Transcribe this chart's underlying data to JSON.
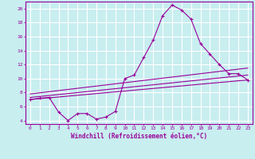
{
  "xlabel": "Windchill (Refroidissement éolien,°C)",
  "background_color": "#c8eef0",
  "grid_color": "#ffffff",
  "line_color": "#990099",
  "xlim": [
    -0.5,
    23.5
  ],
  "ylim": [
    3.5,
    21.0
  ],
  "yticks": [
    4,
    6,
    8,
    10,
    12,
    14,
    16,
    18,
    20
  ],
  "xticks": [
    0,
    1,
    2,
    3,
    4,
    5,
    6,
    7,
    8,
    9,
    10,
    11,
    12,
    13,
    14,
    15,
    16,
    17,
    18,
    19,
    20,
    21,
    22,
    23
  ],
  "series": [
    {
      "x": [
        0,
        1,
        2,
        3,
        4,
        5,
        6,
        7,
        8,
        9,
        10,
        11,
        12,
        13,
        14,
        15,
        16,
        17,
        18,
        19,
        20,
        21,
        22,
        23
      ],
      "y": [
        7.0,
        7.2,
        7.3,
        5.2,
        4.0,
        5.0,
        5.0,
        4.2,
        4.5,
        5.3,
        10.0,
        10.5,
        13.0,
        15.5,
        19.0,
        20.5,
        19.8,
        18.5,
        15.0,
        13.5,
        12.0,
        10.7,
        10.7,
        9.8
      ],
      "marker": true
    },
    {
      "x": [
        0,
        23
      ],
      "y": [
        7.0,
        9.8
      ],
      "marker": false
    },
    {
      "x": [
        0,
        23
      ],
      "y": [
        7.3,
        10.5
      ],
      "marker": false
    },
    {
      "x": [
        0,
        23
      ],
      "y": [
        7.8,
        11.5
      ],
      "marker": false
    }
  ],
  "xlabel_fontsize": 5.5,
  "xlabel_fontweight": "bold",
  "tick_labelsize": 4.5,
  "ytick_labelsize": 5.5
}
